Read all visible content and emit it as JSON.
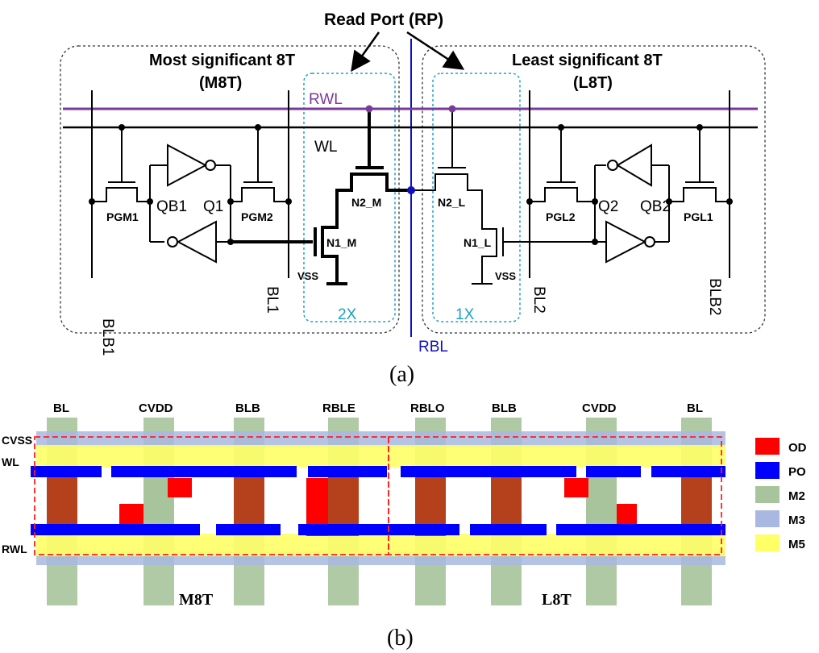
{
  "circuit": {
    "read_port_label": "Read Port (RP)",
    "m8t_title": "Most  significant 8T",
    "m8t_sub": "(M8T)",
    "l8t_title": "Least significant 8T",
    "l8t_sub": "(L8T)",
    "rwl": "RWL",
    "wl": "WL",
    "rbl": "RBL",
    "blb1": "BLB1",
    "bl1": "BL1",
    "bl2": "BL2",
    "blb2": "BLB2",
    "pgm1": "PGM1",
    "pgm2": "PGM2",
    "qb1": "QB1",
    "q1": "Q1",
    "pgl1": "PGL1",
    "pgl2": "PGL2",
    "q2": "Q2",
    "qb2": "QB2",
    "n2m": "N2_M",
    "n1m": "N1_M",
    "n2l": "N2_L",
    "n1l": "N1_L",
    "vss_left": "VSS",
    "vss_right": "VSS",
    "size_m": "2X",
    "size_l": "1X",
    "caption": "(a)"
  },
  "layout": {
    "top_labels": [
      "BL",
      "CVDD",
      "BLB",
      "RBLE",
      "RBLO",
      "BLB",
      "CVDD",
      "BL"
    ],
    "cvss": "CVSS",
    "wl": "WL",
    "rwl": "RWL",
    "m8t": "M8T",
    "l8t": "L8T",
    "caption": "(b)",
    "legend": [
      {
        "label": "OD",
        "color": "#ff0000"
      },
      {
        "label": "PO",
        "color": "#0000ff"
      },
      {
        "label": "M2",
        "color": "#a8c49c"
      },
      {
        "label": "M3",
        "color": "#a8b8e0"
      },
      {
        "label": "M5",
        "color": "#ffff66"
      }
    ]
  }
}
